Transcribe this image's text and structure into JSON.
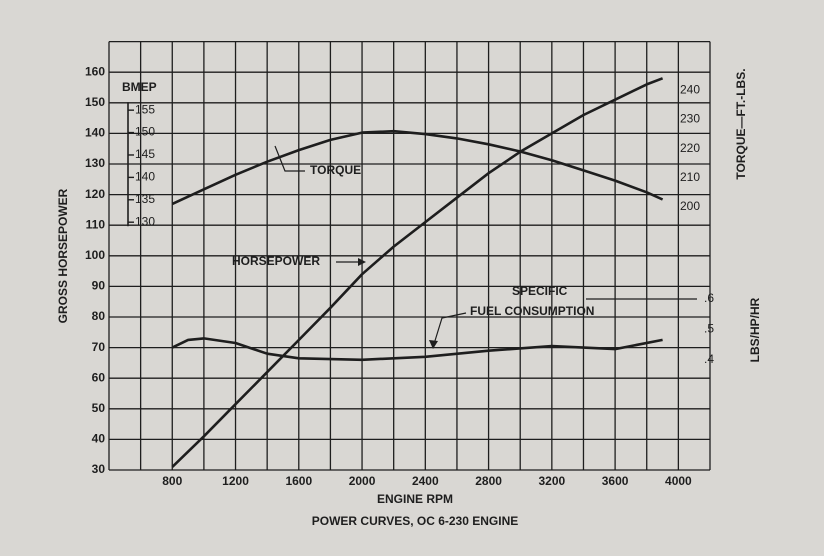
{
  "chart_data": {
    "type": "line",
    "title": "POWER CURVES, OC 6-230 ENGINE",
    "xlabel": "ENGINE RPM",
    "ylabel": "GROSS HORSEPOWER",
    "y2label": "TORQUE—FT.-LBS.",
    "y3label": "LBS/HP/HR",
    "y4label": "BMEP",
    "xlim": [
      400,
      4200
    ],
    "xticks": [
      800,
      1200,
      1600,
      2000,
      2400,
      2800,
      3200,
      3600,
      4000
    ],
    "x_grid_step": 200,
    "ylim": [
      30,
      170
    ],
    "yticks": [
      30,
      40,
      50,
      60,
      70,
      80,
      90,
      100,
      110,
      120,
      130,
      140,
      150,
      160
    ],
    "y2lim": [
      109.5,
      256.8
    ],
    "y2ticks": [
      200,
      210,
      220,
      230,
      240
    ],
    "y3lim": [
      0.04,
      1.44
    ],
    "y3ticks": [
      {
        "value": 0.4,
        "label": ".4"
      },
      {
        "value": 0.5,
        "label": ".5"
      },
      {
        "value": 0.6,
        "label": ".6"
      }
    ],
    "y4lim": [
      74.7,
      170.3
    ],
    "y4ticks": [
      130,
      135,
      140,
      145,
      150,
      155
    ],
    "grid": true,
    "color": "#1e1e1e",
    "series": [
      {
        "label": "HORSEPOWER",
        "axis": "y",
        "x": [
          800,
          1000,
          1200,
          1400,
          1600,
          1800,
          2000,
          2200,
          2400,
          2600,
          2800,
          3000,
          3200,
          3400,
          3600,
          3800,
          3900
        ],
        "values": [
          31,
          41,
          51.5,
          62,
          72.5,
          83,
          94,
          103,
          111,
          119,
          127,
          134,
          140,
          146,
          151,
          156,
          158
        ]
      },
      {
        "label": "TORQUE",
        "axis": "y2",
        "x": [
          800,
          1000,
          1200,
          1400,
          1600,
          1800,
          2000,
          2200,
          2400,
          2600,
          2800,
          3000,
          3200,
          3400,
          3600,
          3800,
          3900
        ],
        "values": [
          201,
          206,
          211,
          215.5,
          219.5,
          223,
          225.5,
          226,
          225,
          223.5,
          221.5,
          219,
          216,
          212.5,
          209,
          205,
          202.5
        ]
      },
      {
        "label": [
          "SPECIFIC",
          "FUEL CONSUMPTION"
        ],
        "axis": "y3",
        "x": [
          800,
          900,
          1000,
          1200,
          1400,
          1600,
          2000,
          2400,
          2800,
          3200,
          3600,
          3900
        ],
        "values": [
          0.44,
          0.465,
          0.47,
          0.455,
          0.42,
          0.405,
          0.4,
          0.41,
          0.43,
          0.445,
          0.435,
          0.465
        ]
      }
    ]
  }
}
